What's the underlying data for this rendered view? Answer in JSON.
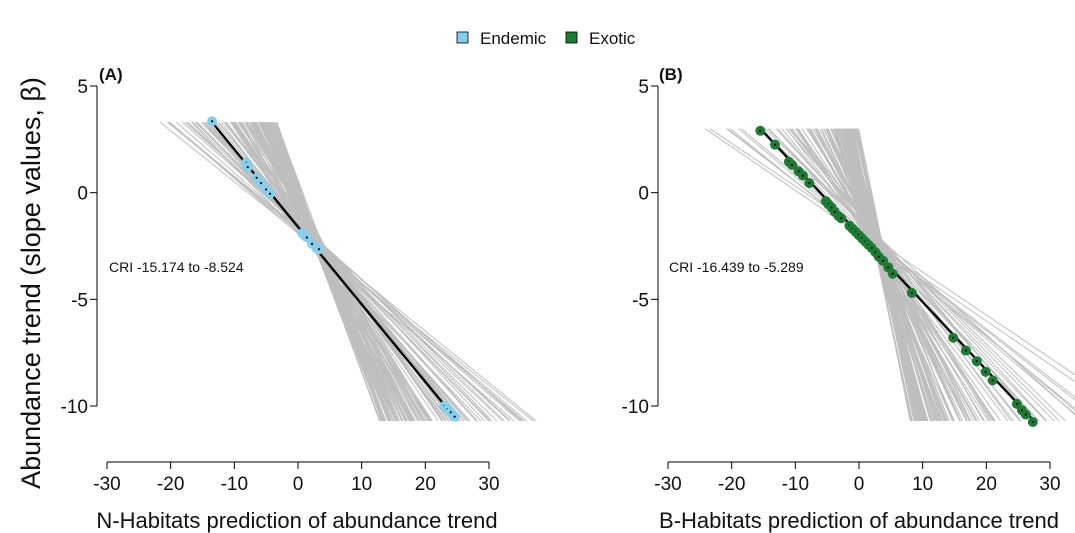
{
  "y_axis_label": "Abundance trend (slope values, β)",
  "legend": [
    {
      "label": "Endemic",
      "color": "#87CEEB"
    },
    {
      "label": "Exotic",
      "color": "#1E7B35"
    }
  ],
  "chart_data": [
    {
      "type": "scatter",
      "panel_label": "(A)",
      "xlabel": "N-Habitats prediction of abundance trend",
      "xlim": [
        -30,
        30
      ],
      "ylim": [
        -12,
        5
      ],
      "xticks": [
        -30,
        -20,
        -10,
        0,
        10,
        20,
        30
      ],
      "yticks": [
        5,
        0,
        -5,
        -10
      ],
      "annotation": "CRI -15.174 to -8.524",
      "point_color": "#87CEEB",
      "fit_line": {
        "x": [
          -13.5,
          24.5
        ],
        "y": [
          3.3,
          -10.5
        ]
      },
      "posterior_lines": {
        "pivot": [
          3.0,
          -2.4
        ],
        "slope_range": [
          -0.84,
          -0.24
        ],
        "y_top": 3.3,
        "y_bottom": -10.7,
        "line_color": "#BEBEBE"
      },
      "series": [
        {
          "x": [
            -13.5,
            -8.1,
            -7.9,
            -6.5,
            -5.8,
            -5.0,
            -4.4,
            0.7,
            1.0,
            1.4,
            2.2,
            2.9,
            3.3,
            23.0,
            23.5,
            24.0,
            24.6
          ],
          "y": [
            3.35,
            1.4,
            1.2,
            0.7,
            0.45,
            0.15,
            -0.05,
            -1.9,
            -2.0,
            -2.1,
            -2.4,
            -2.6,
            -2.65,
            -10.0,
            -10.15,
            -10.3,
            -10.5
          ]
        }
      ]
    },
    {
      "type": "scatter",
      "panel_label": "(B)",
      "xlabel": "B-Habitats prediction of abundance trend",
      "xlim": [
        -30,
        30
      ],
      "ylim": [
        -12,
        5
      ],
      "xticks": [
        -30,
        -20,
        -10,
        0,
        10,
        20,
        30
      ],
      "yticks": [
        5,
        0,
        -5,
        -10
      ],
      "annotation": "CRI -16.439 to -5.289",
      "point_color": "#1E7B35",
      "fit_line": {
        "x": [
          -15.5,
          27.5
        ],
        "y": [
          3.0,
          -10.7
        ]
      },
      "posterior_lines": {
        "pivot": [
          3.0,
          -2.4
        ],
        "slope_range": [
          -1.5,
          -0.2
        ],
        "y_top": 3.0,
        "y_bottom": -10.7,
        "line_color": "#BEBEBE"
      },
      "series": [
        {
          "x": [
            -15.5,
            -13.2,
            -11.0,
            -10.5,
            -9.5,
            -8.8,
            -7.8,
            -5.2,
            -4.8,
            -4.3,
            -3.8,
            -3.2,
            -2.8,
            -1.5,
            -1.0,
            -0.5,
            0.0,
            0.5,
            1.0,
            1.5,
            2.0,
            2.6,
            3.1,
            3.8,
            4.6,
            5.3,
            8.3,
            14.8,
            16.8,
            18.5,
            19.9,
            21.0,
            24.8,
            25.6,
            26.2,
            27.3
          ],
          "y": [
            2.9,
            2.25,
            1.45,
            1.3,
            1.0,
            0.8,
            0.45,
            -0.4,
            -0.55,
            -0.7,
            -0.9,
            -1.1,
            -1.2,
            -1.55,
            -1.7,
            -1.85,
            -2.0,
            -2.15,
            -2.3,
            -2.45,
            -2.6,
            -2.8,
            -3.0,
            -3.2,
            -3.5,
            -3.8,
            -4.7,
            -6.8,
            -7.4,
            -7.9,
            -8.4,
            -8.8,
            -9.9,
            -10.2,
            -10.4,
            -10.75
          ]
        }
      ]
    }
  ]
}
